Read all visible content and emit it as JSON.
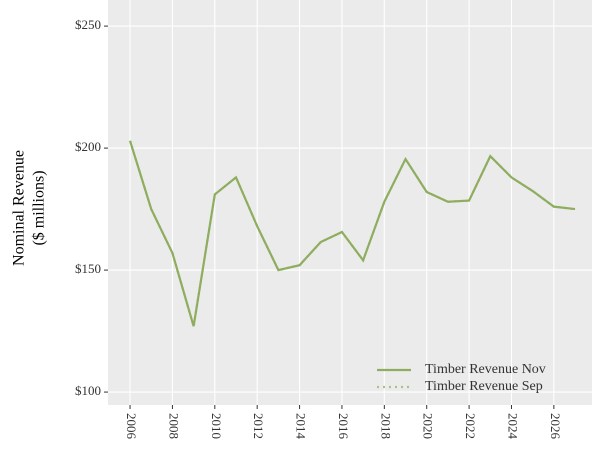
{
  "chart_data": {
    "type": "line",
    "ylabel": [
      "Nominal Revenue",
      "($ millions)"
    ],
    "x": [
      2006,
      2007,
      2008,
      2009,
      2010,
      2011,
      2012,
      2013,
      2014,
      2015,
      2016,
      2017,
      2018,
      2019,
      2020,
      2021,
      2022,
      2023,
      2024,
      2025,
      2026,
      2027
    ],
    "series": [
      {
        "name": "Timber Revenue Nov",
        "color": "#8fad5f",
        "dash": "solid",
        "values": [
          203,
          175,
          157,
          127,
          181,
          188,
          168,
          150,
          152,
          161.5,
          165.6,
          154,
          178,
          195.5,
          182,
          178,
          178.5,
          196.7,
          188,
          182.4,
          176,
          175
        ]
      },
      {
        "name": "Timber Revenue Sep",
        "color": "#a9c285",
        "dash": "dotted",
        "values": [
          203,
          175,
          157,
          127,
          181,
          188,
          168,
          150,
          152,
          161.5,
          165.6,
          154,
          178,
          195.5,
          182,
          178,
          178.5,
          196.7,
          188,
          182.4,
          176,
          175
        ]
      }
    ],
    "xlim": [
      2004.96,
      2027.8
    ],
    "xticks": [
      2006,
      2008,
      2010,
      2012,
      2014,
      2016,
      2018,
      2020,
      2022,
      2024,
      2026
    ],
    "ylim": [
      94.7,
      260.7
    ],
    "yticks": [
      {
        "value": 100,
        "label": "$100"
      },
      {
        "value": 150,
        "label": "$150"
      },
      {
        "value": 200,
        "label": "$200"
      },
      {
        "value": 250,
        "label": "$250"
      }
    ],
    "grid": true,
    "legend": "bottom-right"
  }
}
